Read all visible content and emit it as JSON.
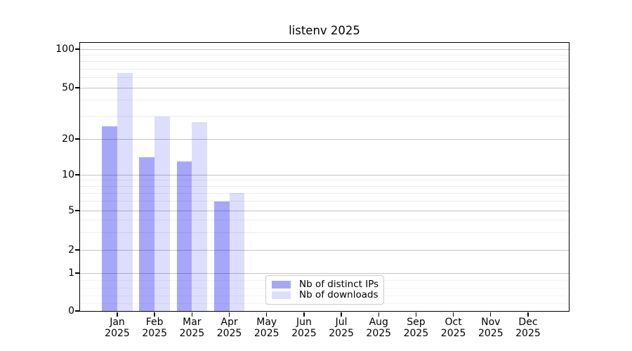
{
  "chart_data": {
    "type": "bar",
    "title": "listenv 2025",
    "categories": [
      "Jan",
      "Feb",
      "Mar",
      "Apr",
      "May",
      "Jun",
      "Jul",
      "Aug",
      "Sep",
      "Oct",
      "Nov",
      "Dec"
    ],
    "x_year_label": "2025",
    "series": [
      {
        "name": "Nb of distinct IPs",
        "color": "rgba(0,0,238,0.345)",
        "values": [
          25,
          14,
          13,
          6,
          null,
          null,
          null,
          null,
          null,
          null,
          null,
          null
        ]
      },
      {
        "name": "Nb of downloads",
        "color": "rgba(0,0,238,0.135)",
        "values": [
          65,
          30,
          27,
          7,
          null,
          null,
          null,
          null,
          null,
          null,
          null,
          null
        ]
      }
    ],
    "yticks": [
      100,
      50,
      20,
      10,
      5,
      2,
      1,
      0
    ],
    "minor_gridlines": [
      0.2,
      0.4,
      0.6,
      0.8,
      3,
      4,
      6,
      7,
      8,
      9,
      30,
      40,
      60,
      70,
      80,
      90
    ],
    "yaxis_scale": "log above 1, linear 0-1 (symlog-like)",
    "ylim": [
      0,
      110
    ],
    "grid": true,
    "legend_position": "lower-center",
    "colors": {
      "spine": "#000000",
      "major_grid": "#c3c3c3",
      "minor_grid": "#ececec",
      "sub1_grid": "#f2f2f2",
      "text": "#000000",
      "background": "#ffffff"
    }
  }
}
